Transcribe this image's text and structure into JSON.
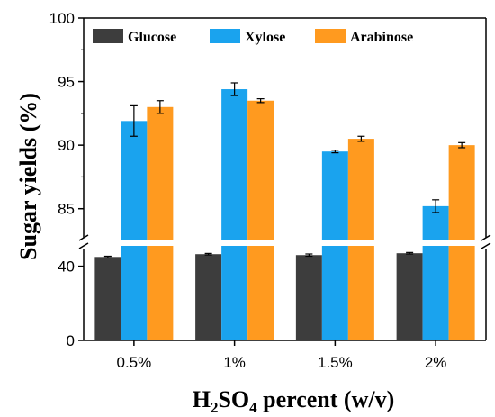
{
  "chart_data": {
    "type": "bar",
    "categories": [
      "0.5%",
      "1%",
      "1.5%",
      "2%"
    ],
    "series": [
      {
        "name": "Glucose",
        "color": "#3d3d3d",
        "values": [
          45.0,
          46.5,
          46.0,
          47.0
        ],
        "errors": [
          0.4,
          0.4,
          0.6,
          0.4
        ]
      },
      {
        "name": "Xylose",
        "color": "#1aa3ee",
        "values": [
          91.9,
          94.4,
          89.5,
          85.2
        ],
        "errors": [
          1.2,
          0.5,
          0.1,
          0.5
        ]
      },
      {
        "name": "Arabinose",
        "color": "#ff9a1f",
        "values": [
          93.0,
          93.5,
          90.5,
          90.0
        ],
        "errors": [
          0.5,
          0.15,
          0.2,
          0.2
        ]
      }
    ],
    "xlabel_parts": [
      "H",
      "2",
      "SO",
      "4",
      " percent (w/v)"
    ],
    "ylabel": "Sugar yields (%)",
    "y_axis_break": true,
    "ylim_lower": [
      0,
      50
    ],
    "ylim_upper": [
      82.5,
      100
    ],
    "yticks_lower": [
      "0",
      "40"
    ],
    "yticks_upper": [
      "85",
      "90",
      "95",
      "100"
    ],
    "legend_position": "top"
  }
}
